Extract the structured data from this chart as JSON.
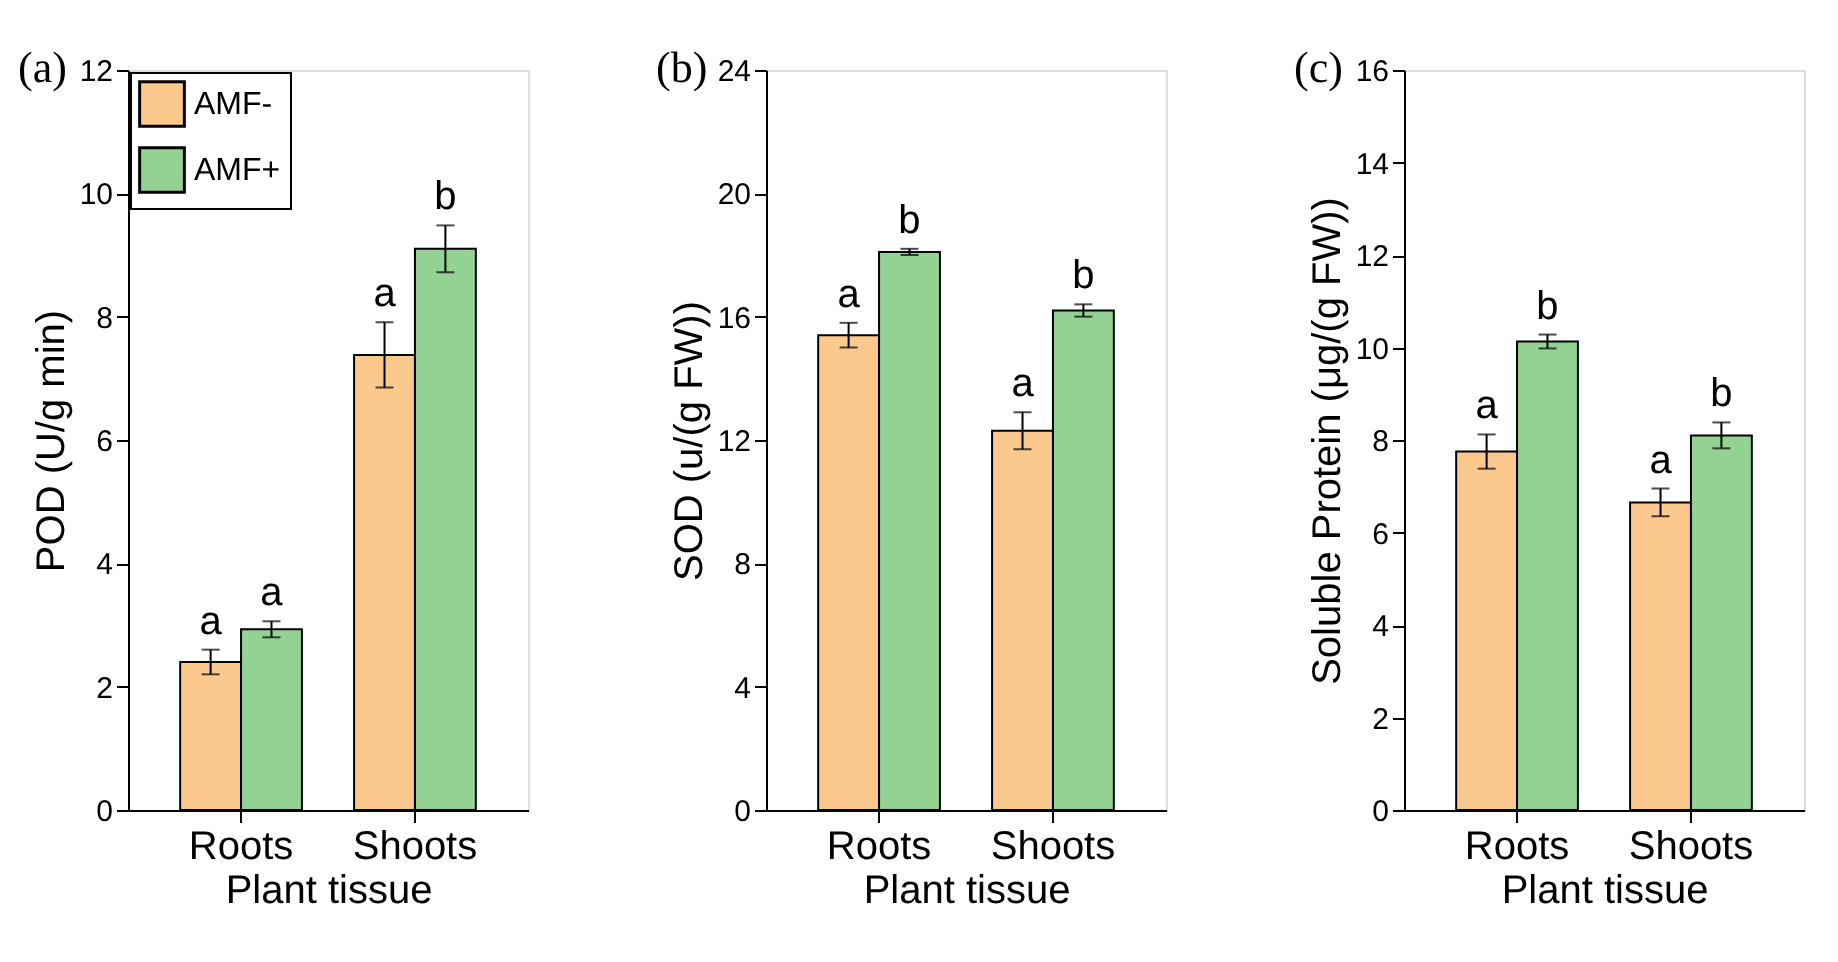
{
  "chart_data": [
    {
      "type": "bar",
      "title": "(a)",
      "xlabel": "Plant tissue",
      "ylabel": "POD (U/g min)",
      "categories": [
        "Roots",
        "Shoots"
      ],
      "ylim": [
        0,
        12
      ],
      "yticks": [
        0,
        2,
        4,
        6,
        8,
        10,
        12
      ],
      "grid": false,
      "legend": "top left",
      "series": [
        {
          "name": "AMF-",
          "color": "#fbc98e",
          "values": [
            2.4,
            7.38
          ],
          "errors": [
            0.2,
            0.53
          ]
        },
        {
          "name": "AMF+",
          "color": "#93d293",
          "values": [
            2.93,
            9.1
          ],
          "errors": [
            0.13,
            0.38
          ]
        }
      ],
      "annotations": [
        {
          "text": "a",
          "x": "Roots",
          "y": 2.4
        },
        {
          "text": "a",
          "x": "Roots",
          "y": 2.93
        },
        {
          "text": "a",
          "x": "Shoots",
          "y": 7.38
        },
        {
          "text": "b",
          "x": "Shoots",
          "y": 9.1
        }
      ]
    },
    {
      "type": "bar",
      "title": "(b)",
      "xlabel": "Plant tissue",
      "ylabel": "SOD (u/(g FW))",
      "categories": [
        "Roots",
        "Shoots"
      ],
      "ylim": [
        0,
        24
      ],
      "yticks": [
        0,
        4,
        8,
        12,
        16,
        20,
        24
      ],
      "grid": false,
      "legend": "top left",
      "series": [
        {
          "name": "AMF-",
          "color": "#fbc98e",
          "values": [
            15.4,
            12.3
          ],
          "errors": [
            0.4,
            0.6
          ]
        },
        {
          "name": "AMF+",
          "color": "#93d293",
          "values": [
            18.1,
            16.2
          ],
          "errors": [
            0.1,
            0.2
          ]
        }
      ],
      "annotations": [
        {
          "text": "a",
          "x": "Roots",
          "y": 15.4
        },
        {
          "text": "b",
          "x": "Roots",
          "y": 18.1
        },
        {
          "text": "a",
          "x": "Shoots",
          "y": 12.3
        },
        {
          "text": "b",
          "x": "Shoots",
          "y": 16.2
        }
      ]
    },
    {
      "type": "bar",
      "title": "(c)",
      "xlabel": "Plant tissue",
      "ylabel": "Soluble Protein (μg/(g FW))",
      "categories": [
        "Roots",
        "Shoots"
      ],
      "ylim": [
        0,
        16
      ],
      "yticks": [
        0,
        2,
        4,
        6,
        8,
        10,
        12,
        14,
        16
      ],
      "grid": false,
      "legend": "top left",
      "series": [
        {
          "name": "AMF-",
          "color": "#fbc98e",
          "values": [
            7.75,
            6.65
          ],
          "errors": [
            0.37,
            0.3
          ]
        },
        {
          "name": "AMF+",
          "color": "#93d293",
          "values": [
            10.13,
            8.1
          ],
          "errors": [
            0.15,
            0.28
          ]
        }
      ],
      "annotations": [
        {
          "text": "a",
          "x": "Roots",
          "y": 7.75
        },
        {
          "text": "b",
          "x": "Roots",
          "y": 10.13
        },
        {
          "text": "a",
          "x": "Shoots",
          "y": 6.65
        },
        {
          "text": "b",
          "x": "Shoots",
          "y": 8.1
        }
      ]
    }
  ]
}
